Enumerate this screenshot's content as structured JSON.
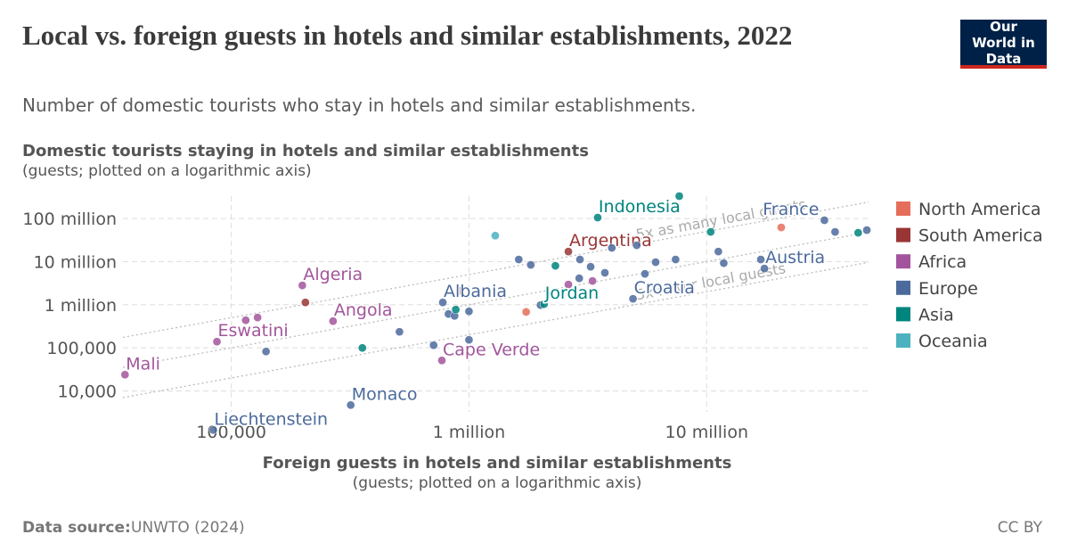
{
  "chart_data": {
    "type": "scatter",
    "title": "Local vs. foreign guests in hotels and similar establishments, 2022",
    "subtitle": "Number of domestic tourists who stay in hotels and similar establishments.",
    "y_label": "Domestic tourists staying in hotels and similar establishments",
    "y_sublabel": "(guests; plotted on a logarithmic axis)",
    "x_label": "Foreign guests in hotels and similar establishments",
    "x_sublabel": "(guests; plotted on a logarithmic axis)",
    "source_label": "Data source:",
    "source": "UNWTO (2024)",
    "license": "CC BY",
    "logo": "Our World in Data",
    "xscale": "log",
    "yscale": "log",
    "grid": true,
    "legend": "right",
    "xlim": [
      35000,
      48000000
    ],
    "ylim": [
      1200,
      330000000
    ],
    "xticks": [
      {
        "value": 100000,
        "label": "100,000"
      },
      {
        "value": 1000000,
        "label": "1 million"
      },
      {
        "value": 10000000,
        "label": "10 million"
      }
    ],
    "yticks": [
      {
        "value": 10000,
        "label": "10,000"
      },
      {
        "value": 100000,
        "label": "100,000"
      },
      {
        "value": 1000000,
        "label": "1 million"
      },
      {
        "value": 10000000,
        "label": "10 million"
      },
      {
        "value": 100000000,
        "label": "100 million"
      }
    ],
    "reference_lines": [
      {
        "ratio": 5,
        "label": "5x as many local guests"
      },
      {
        "ratio": 1
      },
      {
        "ratio": 0.2,
        "label": "5x fewer local guests"
      }
    ],
    "series": [
      {
        "name": "North America",
        "color": "#e56e5a",
        "x": [
          20600000,
          1740000
        ],
        "values": [
          62000000,
          680000
        ],
        "labels": [
          null,
          null
        ]
      },
      {
        "name": "South America",
        "color": "#9a3535",
        "x": [
          2620000,
          920000,
          205000
        ],
        "values": [
          17100000,
          2100000,
          1130000
        ],
        "labels": [
          "Argentina",
          null,
          null
        ]
      },
      {
        "name": "Africa",
        "color": "#a2559c",
        "x": [
          199000,
          268000,
          87000,
          35700,
          769000,
          115000,
          129000,
          2620000,
          3310000
        ],
        "values": [
          2800000,
          416000,
          139000,
          23800,
          51000,
          436000,
          504000,
          2940000,
          3560000
        ],
        "labels": [
          "Algeria",
          "Angola",
          "Eswatini",
          "Mali",
          "Cape Verde",
          null,
          null,
          null,
          null
        ]
      },
      {
        "name": "Europe",
        "color": "#4c6a9c",
        "x": [
          31300000,
          17500000,
          4900000,
          776000,
          318000,
          84000,
          34700000,
          47200000,
          11200000,
          11800000,
          16900000,
          7400000,
          6100000,
          5500000,
          1620000,
          1820000,
          2930000,
          3250000,
          3730000,
          2910000,
          3990000,
          5080000,
          1000000,
          820000,
          870000,
          2000000,
          510000,
          710000,
          1000000,
          140000
        ],
        "values": [
          91000000,
          6900000,
          1370000,
          1130000,
          4700,
          1240,
          48900000,
          53800000,
          17100000,
          9200000,
          11200000,
          11200000,
          9700000,
          5200000,
          11200000,
          8400000,
          11200000,
          7600000,
          5500000,
          4100000,
          20800000,
          23900000,
          700000,
          610000,
          550000,
          980000,
          235000,
          115000,
          153000,
          82000
        ],
        "labels": [
          "France",
          "Austria",
          "Croatia",
          "Albania",
          "Monaco",
          "Liechtenstein",
          null,
          null,
          null,
          null,
          null,
          null,
          null,
          null,
          null,
          null,
          null,
          null,
          null,
          null,
          null,
          null,
          null,
          null,
          null,
          null,
          null,
          null,
          null,
          null
        ]
      },
      {
        "name": "Asia",
        "color": "#00847e",
        "x": [
          3480000,
          2070000,
          7670000,
          10400000,
          43400000,
          2310000,
          356000,
          880000
        ],
        "values": [
          105000000,
          1030000,
          330000000,
          48900000,
          46700000,
          8000000,
          99500,
          770000
        ],
        "labels": [
          "Indonesia",
          "Jordan",
          null,
          null,
          null,
          null,
          null,
          null
        ]
      },
      {
        "name": "Oceania",
        "color": "#4cb2bf",
        "x": [
          1290000
        ],
        "values": [
          40000000
        ],
        "labels": [
          null
        ]
      }
    ]
  }
}
